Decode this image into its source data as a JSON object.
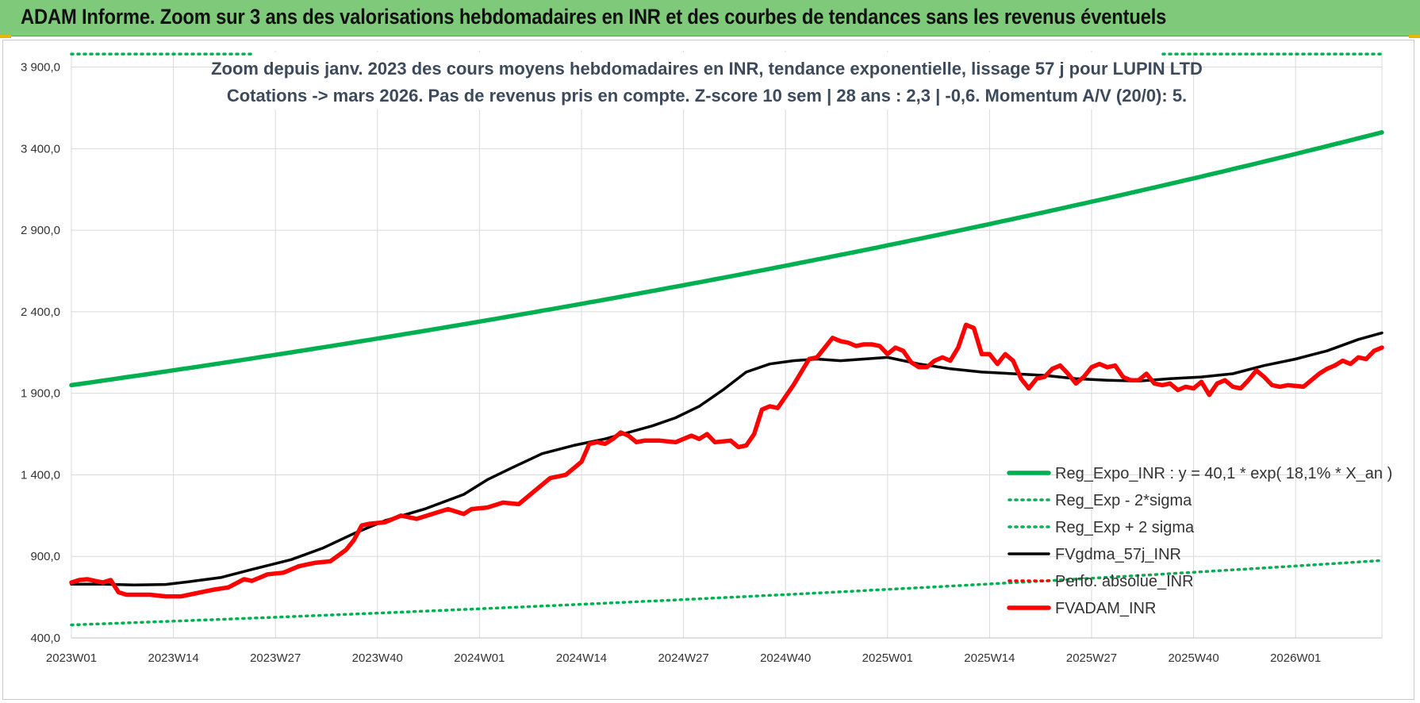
{
  "banner": {
    "title": "ADAM Informe. Zoom sur 3 ans des valorisations hebdomadaires en INR et des courbes de tendances sans les revenus éventuels"
  },
  "colors": {
    "banner_bg": "#7fc97a",
    "reg_expo": "#00b050",
    "sigma": "#00b050",
    "fvgdma": "#000000",
    "perf": "#ff0000",
    "fvadam": "#ff0000"
  },
  "chart_data": {
    "type": "line",
    "title_lines": [
      "Zoom depuis janv. 2023 des cours moyens hebdomadaires en INR, tendance exponentielle, lissage 57 j pour LUPIN LTD",
      "Cotations -> mars 2026. Pas de revenus pris en compte. Z-score 10 sem | 28 ans : 2,3 | -0,6. Momentum A/V (20/0): 5."
    ],
    "xlabel": "",
    "ylabel": "",
    "ylim": [
      400,
      4000
    ],
    "y_ticks": [
      400,
      900,
      1400,
      1900,
      2400,
      2900,
      3400,
      3900
    ],
    "y_tick_labels": [
      "400,0",
      "900,0",
      "1 400,0",
      "1 900,0",
      "2 400,0",
      "2 900,0",
      "3 400,0",
      "3 900,0"
    ],
    "x_tick_labels": [
      "2023W01",
      "2023W14",
      "2023W27",
      "2023W40",
      "2024W01",
      "2024W14",
      "2024W27",
      "2024W40",
      "2025W01",
      "2025W14",
      "2025W27",
      "2025W40",
      "2026W01"
    ],
    "x_tick_weeks": [
      0,
      13,
      26,
      39,
      52,
      65,
      78,
      91,
      104,
      117,
      130,
      143,
      156
    ],
    "week_count": 167,
    "grid": true,
    "legend_position": "bottom-right",
    "series": [
      {
        "name": "Reg_Expo_INR : y = 40,1 * exp( 18,1% *  X_an )",
        "style": "solid-thick",
        "color": "#00b050",
        "kind": "exponential",
        "start_value": 1950,
        "end_value": 3500
      },
      {
        "name": "Reg_Exp - 2*sigma",
        "style": "dotted",
        "color": "#00b050",
        "kind": "exponential",
        "start_value": 480,
        "end_value": 875
      },
      {
        "name": "Reg_Exp + 2 sigma",
        "style": "dotted",
        "color": "#00b050",
        "kind": "constant",
        "start_value": 3980,
        "end_value": 3980
      },
      {
        "name": "FVgdma_57j_INR",
        "style": "solid",
        "color": "#000000",
        "kind": "points",
        "points": [
          [
            0,
            730
          ],
          [
            4,
            730
          ],
          [
            8,
            725
          ],
          [
            12,
            728
          ],
          [
            15,
            745
          ],
          [
            19,
            770
          ],
          [
            23,
            820
          ],
          [
            28,
            880
          ],
          [
            32,
            950
          ],
          [
            36,
            1040
          ],
          [
            40,
            1120
          ],
          [
            45,
            1190
          ],
          [
            50,
            1280
          ],
          [
            53,
            1370
          ],
          [
            56,
            1440
          ],
          [
            60,
            1530
          ],
          [
            64,
            1580
          ],
          [
            68,
            1620
          ],
          [
            71,
            1660
          ],
          [
            74,
            1700
          ],
          [
            77,
            1750
          ],
          [
            80,
            1820
          ],
          [
            83,
            1920
          ],
          [
            86,
            2030
          ],
          [
            89,
            2080
          ],
          [
            92,
            2100
          ],
          [
            95,
            2110
          ],
          [
            98,
            2100
          ],
          [
            101,
            2110
          ],
          [
            104,
            2120
          ],
          [
            108,
            2080
          ],
          [
            112,
            2050
          ],
          [
            116,
            2030
          ],
          [
            120,
            2020
          ],
          [
            124,
            2010
          ],
          [
            128,
            1990
          ],
          [
            132,
            1980
          ],
          [
            136,
            1975
          ],
          [
            140,
            1990
          ],
          [
            144,
            2000
          ],
          [
            148,
            2020
          ],
          [
            152,
            2070
          ],
          [
            156,
            2110
          ],
          [
            160,
            2160
          ],
          [
            164,
            2230
          ],
          [
            167,
            2270
          ]
        ]
      },
      {
        "name": "Perfo. absolue_INR",
        "style": "dotted",
        "color": "#ff0000",
        "kind": "none"
      },
      {
        "name": "FVADAM_INR",
        "style": "solid-thick",
        "color": "#ff0000",
        "kind": "points",
        "points": [
          [
            0,
            740
          ],
          [
            1,
            755
          ],
          [
            2,
            760
          ],
          [
            3,
            750
          ],
          [
            4,
            740
          ],
          [
            5,
            755
          ],
          [
            6,
            680
          ],
          [
            7,
            665
          ],
          [
            8,
            665
          ],
          [
            10,
            665
          ],
          [
            12,
            655
          ],
          [
            14,
            655
          ],
          [
            16,
            675
          ],
          [
            18,
            695
          ],
          [
            20,
            710
          ],
          [
            22,
            760
          ],
          [
            23,
            750
          ],
          [
            25,
            790
          ],
          [
            27,
            800
          ],
          [
            29,
            840
          ],
          [
            31,
            860
          ],
          [
            33,
            870
          ],
          [
            35,
            940
          ],
          [
            36,
            1000
          ],
          [
            37,
            1090
          ],
          [
            38,
            1100
          ],
          [
            40,
            1110
          ],
          [
            42,
            1150
          ],
          [
            44,
            1130
          ],
          [
            46,
            1160
          ],
          [
            48,
            1190
          ],
          [
            50,
            1160
          ],
          [
            51,
            1190
          ],
          [
            53,
            1200
          ],
          [
            55,
            1230
          ],
          [
            57,
            1220
          ],
          [
            59,
            1300
          ],
          [
            61,
            1380
          ],
          [
            63,
            1400
          ],
          [
            64,
            1440
          ],
          [
            65,
            1480
          ],
          [
            66,
            1590
          ],
          [
            67,
            1600
          ],
          [
            68,
            1590
          ],
          [
            69,
            1620
          ],
          [
            70,
            1660
          ],
          [
            71,
            1640
          ],
          [
            72,
            1600
          ],
          [
            73,
            1610
          ],
          [
            75,
            1610
          ],
          [
            77,
            1600
          ],
          [
            79,
            1640
          ],
          [
            80,
            1620
          ],
          [
            81,
            1650
          ],
          [
            82,
            1600
          ],
          [
            84,
            1610
          ],
          [
            85,
            1570
          ],
          [
            86,
            1580
          ],
          [
            87,
            1650
          ],
          [
            88,
            1800
          ],
          [
            89,
            1820
          ],
          [
            90,
            1810
          ],
          [
            92,
            1950
          ],
          [
            94,
            2110
          ],
          [
            95,
            2120
          ],
          [
            96,
            2180
          ],
          [
            97,
            2240
          ],
          [
            98,
            2220
          ],
          [
            99,
            2210
          ],
          [
            100,
            2190
          ],
          [
            101,
            2200
          ],
          [
            102,
            2200
          ],
          [
            103,
            2190
          ],
          [
            104,
            2140
          ],
          [
            105,
            2180
          ],
          [
            106,
            2160
          ],
          [
            107,
            2090
          ],
          [
            108,
            2060
          ],
          [
            109,
            2060
          ],
          [
            110,
            2100
          ],
          [
            111,
            2120
          ],
          [
            112,
            2100
          ],
          [
            113,
            2180
          ],
          [
            114,
            2320
          ],
          [
            115,
            2300
          ],
          [
            116,
            2140
          ],
          [
            117,
            2140
          ],
          [
            118,
            2080
          ],
          [
            119,
            2140
          ],
          [
            120,
            2100
          ],
          [
            121,
            1990
          ],
          [
            122,
            1930
          ],
          [
            123,
            1990
          ],
          [
            124,
            2000
          ],
          [
            125,
            2050
          ],
          [
            126,
            2070
          ],
          [
            127,
            2020
          ],
          [
            128,
            1960
          ],
          [
            129,
            2000
          ],
          [
            130,
            2060
          ],
          [
            131,
            2080
          ],
          [
            132,
            2060
          ],
          [
            133,
            2070
          ],
          [
            134,
            2000
          ],
          [
            135,
            1980
          ],
          [
            136,
            1980
          ],
          [
            137,
            2020
          ],
          [
            138,
            1960
          ],
          [
            139,
            1950
          ],
          [
            140,
            1960
          ],
          [
            141,
            1920
          ],
          [
            142,
            1940
          ],
          [
            143,
            1930
          ],
          [
            144,
            1970
          ],
          [
            145,
            1890
          ],
          [
            146,
            1960
          ],
          [
            147,
            1980
          ],
          [
            148,
            1940
          ],
          [
            149,
            1930
          ],
          [
            150,
            1980
          ],
          [
            151,
            2040
          ],
          [
            152,
            2000
          ],
          [
            153,
            1950
          ],
          [
            154,
            1940
          ],
          [
            155,
            1950
          ],
          [
            157,
            1940
          ],
          [
            158,
            1980
          ],
          [
            159,
            2020
          ],
          [
            160,
            2050
          ],
          [
            161,
            2070
          ],
          [
            162,
            2100
          ],
          [
            163,
            2080
          ],
          [
            164,
            2120
          ],
          [
            165,
            2110
          ],
          [
            166,
            2160
          ],
          [
            167,
            2180
          ]
        ]
      }
    ]
  }
}
